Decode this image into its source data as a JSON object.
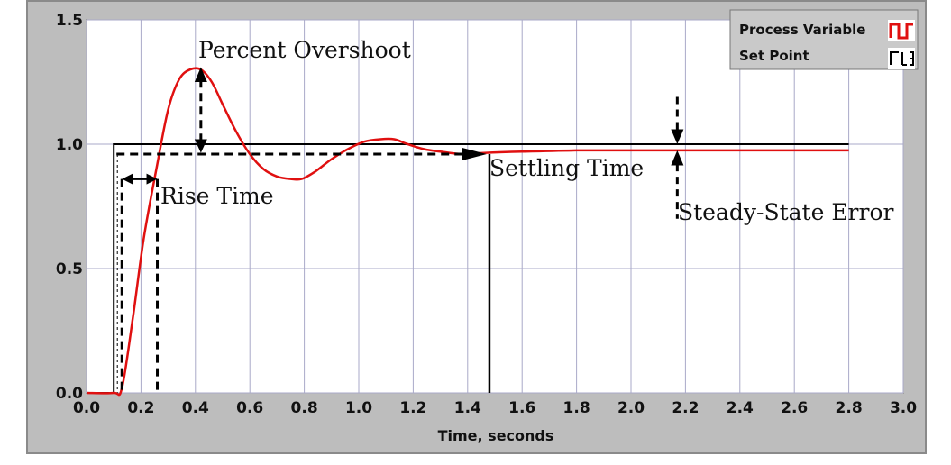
{
  "chart_data": {
    "type": "line",
    "title": "",
    "xlabel": "Time, seconds",
    "ylabel": "",
    "xlim": [
      0,
      3.0
    ],
    "ylim": [
      0,
      1.5
    ],
    "grid": true,
    "legend_position": "top-right",
    "x_ticks": [
      "0.0",
      "0.2",
      "0.4",
      "0.6",
      "0.8",
      "1.0",
      "1.2",
      "1.4",
      "1.6",
      "1.8",
      "2.0",
      "2.2",
      "2.4",
      "2.6",
      "2.8",
      "3.0"
    ],
    "y_ticks": [
      "0.0",
      "0.5",
      "1.0",
      "1.5"
    ],
    "series": [
      {
        "name": "Process Variable",
        "color": "#e01010",
        "x": [
          0,
          0.1,
          0.13,
          0.17,
          0.21,
          0.26,
          0.3,
          0.34,
          0.38,
          0.42,
          0.46,
          0.5,
          0.55,
          0.6,
          0.65,
          0.7,
          0.75,
          0.79,
          0.84,
          0.9,
          0.96,
          1.02,
          1.08,
          1.13,
          1.18,
          1.24,
          1.3,
          1.38,
          1.46,
          1.6,
          1.8,
          2.0,
          2.2,
          2.4,
          2.6,
          2.8
        ],
        "y": [
          0,
          0,
          0.02,
          0.3,
          0.62,
          0.92,
          1.14,
          1.26,
          1.3,
          1.3,
          1.25,
          1.16,
          1.05,
          0.96,
          0.9,
          0.87,
          0.86,
          0.86,
          0.89,
          0.94,
          0.98,
          1.01,
          1.02,
          1.02,
          1.0,
          0.98,
          0.97,
          0.96,
          0.965,
          0.97,
          0.975,
          0.975,
          0.975,
          0.975,
          0.975,
          0.975
        ]
      },
      {
        "name": "Set Point",
        "color": "#000000",
        "x": [
          0,
          0.1,
          0.1,
          2.8
        ],
        "y": [
          0,
          0,
          1.0,
          1.0
        ]
      }
    ],
    "annotations": {
      "percent_overshoot": "Percent Overshoot",
      "rise_time": "Rise Time",
      "settling_time": "Settling Time",
      "steady_state_error": "Steady-State Error"
    }
  }
}
